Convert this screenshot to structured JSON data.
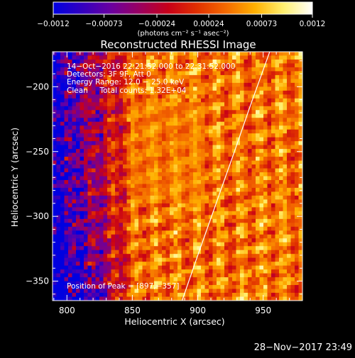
{
  "chart_data": {
    "type": "heatmap",
    "title": "Reconstructed RHESSI Image",
    "xlabel": "Heliocentric X (arcsec)",
    "ylabel": "Heliocentric Y (arcsec)",
    "xlim": [
      789,
      980
    ],
    "ylim": [
      -365,
      -173
    ],
    "x_ticks": [
      800,
      850,
      900,
      950
    ],
    "y_ticks": [
      -200,
      -250,
      -300,
      -350
    ],
    "x_tick_labels": [
      "800",
      "850",
      "900",
      "950"
    ],
    "y_tick_labels": [
      "−200",
      "−250",
      "−300",
      "−350"
    ],
    "colorbar": {
      "range": [
        -0.0012,
        0.0012
      ],
      "ticks": [
        -0.0012,
        -0.00073,
        -0.00024,
        0.00024,
        0.00073,
        0.0012
      ],
      "tick_labels": [
        "−0.0012",
        "−0.00073",
        "−0.00024",
        "0.00024",
        "0.00073",
        "0.0012"
      ],
      "unit": "(photons cm⁻² s⁻¹ asec⁻²)",
      "colors": [
        "#0000e0",
        "#3300c0",
        "#6a00a0",
        "#9a0060",
        "#c80018",
        "#e03000",
        "#f46a00",
        "#ffb000",
        "#fff070",
        "#ffffff"
      ]
    },
    "annotations": [
      "14−Oct−2016 22:21:52.000 to 22:31:52.000",
      "Detectors: 3F 9F, Att 0",
      "Energy Range: 12.0 − 25.0 keV",
      "Clean     Total counts: 1.32E+04"
    ],
    "peak_label": "Position of Peak = [897,−357]",
    "limb_curve": [
      [
        888,
        -365
      ],
      [
        900,
        -330
      ],
      [
        914,
        -290
      ],
      [
        928,
        -250
      ],
      [
        940,
        -215
      ],
      [
        955,
        -173
      ]
    ],
    "grid": false,
    "legend": "none"
  },
  "timestamp": "28−Nov−2017 23:49"
}
